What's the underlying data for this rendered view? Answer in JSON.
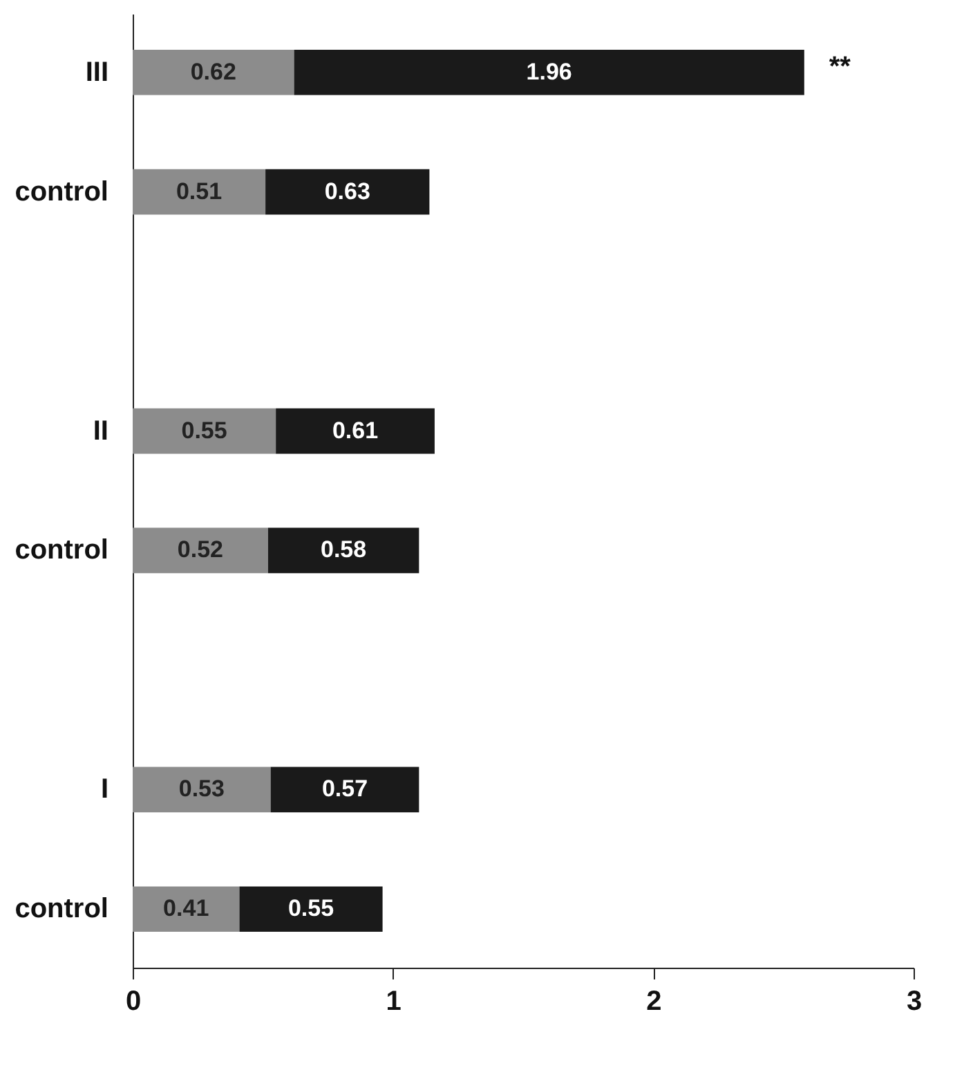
{
  "chart_data": {
    "type": "bar",
    "orientation": "horizontal",
    "stacked": true,
    "categories": [
      "III",
      "control",
      null,
      "II",
      "control",
      null,
      "I",
      "control"
    ],
    "series": [
      {
        "color": "#8c8c8c",
        "values": [
          0.62,
          0.51,
          null,
          0.55,
          0.52,
          null,
          0.53,
          0.41
        ]
      },
      {
        "color": "#1a1a1a",
        "values": [
          1.96,
          0.63,
          null,
          0.61,
          0.58,
          null,
          0.57,
          0.55
        ]
      }
    ],
    "xlim": [
      0,
      3
    ],
    "xticks": [
      0,
      1,
      2,
      3
    ],
    "data_labels": true,
    "grid": false,
    "legend": false,
    "annotations": [
      "**"
    ]
  }
}
